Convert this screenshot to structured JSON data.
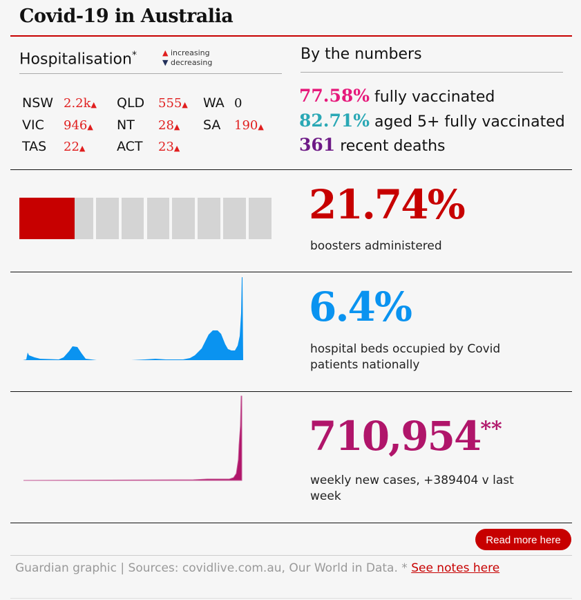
{
  "title": "Covid-19 in Australia",
  "hospitalisation": {
    "heading": "Hospitalisation",
    "asterisk": "*",
    "legend": {
      "increasing": "increasing",
      "decreasing": "decreasing"
    },
    "states": [
      {
        "name": "NSW",
        "value": "2.2k",
        "trend": "increasing"
      },
      {
        "name": "QLD",
        "value": "555",
        "trend": "increasing"
      },
      {
        "name": "WA",
        "value": "0",
        "trend": "none"
      },
      {
        "name": "VIC",
        "value": "946",
        "trend": "increasing"
      },
      {
        "name": "NT",
        "value": "28",
        "trend": "increasing"
      },
      {
        "name": "SA",
        "value": "190",
        "trend": "increasing"
      },
      {
        "name": "TAS",
        "value": "22",
        "trend": "increasing"
      },
      {
        "name": "ACT",
        "value": "23",
        "trend": "increasing"
      }
    ]
  },
  "by_numbers": {
    "heading": "By the numbers",
    "stats": [
      {
        "value": "77.58%",
        "label": "fully vaccinated",
        "color": "#e6197b"
      },
      {
        "value": "82.71%",
        "label": "aged 5+ fully vaccinated",
        "color": "#2aa8b5"
      },
      {
        "value": "361",
        "label": "recent deaths",
        "color": "#6d1a86"
      }
    ]
  },
  "boosters": {
    "value": "21.74%",
    "label": "boosters administered",
    "fraction": 0.2174,
    "color": "#c70000"
  },
  "beds": {
    "value": "6.4%",
    "label": "hospital beds occupied by Covid patients nationally",
    "color": "#0a93f0"
  },
  "cases": {
    "value": "710,954",
    "mark": "**",
    "label": "weekly new cases, +389404 v last week",
    "color": "#b0156a"
  },
  "read_more": "Read more here",
  "footer": {
    "text": "Guardian graphic | Sources: covidlive.com.au, Our World in Data. * ",
    "link": "See notes here"
  }
}
